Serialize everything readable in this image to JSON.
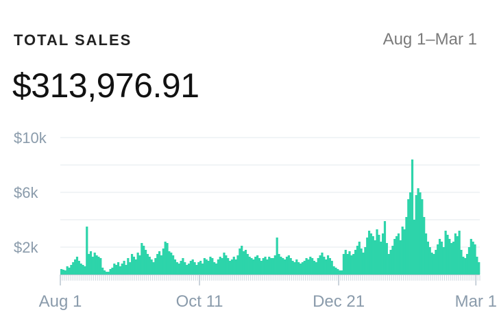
{
  "header": {
    "title": "TOTAL SALES",
    "date_range": "Aug 1–Mar 1",
    "total": "$313,976.91"
  },
  "colors": {
    "bar": "#2dd4aa",
    "grid": "#e3e8ee",
    "axis": "#b9c4cf",
    "tick_text": "#8a9bab"
  },
  "chart_data": {
    "type": "bar",
    "title": "",
    "xlabel": "",
    "ylabel": "",
    "ylim": [
      0,
      10000
    ],
    "grid": true,
    "y_ticks": [
      {
        "value": 10000,
        "label": "$10k"
      },
      {
        "value": 6000,
        "label": "$6k"
      },
      {
        "value": 2000,
        "label": "$2k"
      }
    ],
    "y_gridlines": [
      10000,
      8000,
      6000,
      4000,
      2000
    ],
    "x_ticks": [
      {
        "index": 0,
        "label": "Aug 1"
      },
      {
        "index": 71,
        "label": "Oct 11"
      },
      {
        "index": 142,
        "label": "Dec 21"
      },
      {
        "index": 212,
        "label": "Mar 1"
      }
    ],
    "start_date": "Aug 1",
    "end_date": "Mar 1",
    "values": [
      400,
      350,
      300,
      600,
      500,
      700,
      900,
      1100,
      1300,
      1000,
      800,
      700,
      600,
      3500,
      1500,
      1700,
      1300,
      1600,
      1400,
      1300,
      1200,
      500,
      300,
      200,
      200,
      400,
      500,
      800,
      700,
      900,
      600,
      800,
      1000,
      700,
      1200,
      900,
      1500,
      1300,
      1100,
      1600,
      1400,
      2300,
      2100,
      1800,
      1500,
      1300,
      1100,
      900,
      1200,
      1500,
      1700,
      1400,
      1900,
      2400,
      2300,
      1700,
      1600,
      1400,
      1100,
      900,
      800,
      1000,
      1200,
      900,
      700,
      800,
      1000,
      1100,
      900,
      700,
      900,
      1000,
      800,
      1200,
      1100,
      1000,
      1300,
      1200,
      900,
      800,
      1100,
      1300,
      1200,
      1600,
      1400,
      1200,
      1000,
      1100,
      1300,
      1100,
      1400,
      1900,
      2100,
      1700,
      1800,
      1500,
      1300,
      1200,
      1100,
      1300,
      1400,
      1200,
      1000,
      1200,
      1300,
      1100,
      1300,
      1200,
      1200,
      1400,
      2700,
      1500,
      1300,
      1200,
      1100,
      1300,
      1400,
      1200,
      1000,
      900,
      1100,
      900,
      800,
      900,
      1000,
      1200,
      1100,
      1300,
      1200,
      1000,
      900,
      1200,
      1400,
      1600,
      1300,
      1100,
      1400,
      1200,
      1000,
      600,
      500,
      400,
      300,
      300,
      1500,
      1800,
      1500,
      1700,
      1400,
      1500,
      1800,
      2100,
      2400,
      1900,
      1600,
      2000,
      2700,
      3200,
      3000,
      2800,
      2500,
      3300,
      2900,
      2400,
      3000,
      3900,
      2300,
      1500,
      1800,
      2100,
      2600,
      2800,
      3000,
      2500,
      3500,
      3300,
      4200,
      5500,
      6000,
      8400,
      4000,
      5800,
      6300,
      6000,
      5500,
      4200,
      3000,
      2400,
      2000,
      1600,
      1500,
      1800,
      2200,
      2600,
      2400,
      2000,
      3200,
      2900,
      2600,
      2300,
      2400,
      3000,
      2800,
      3200,
      1800,
      1300,
      1200,
      1500,
      2000,
      2600,
      2400,
      2200,
      1300,
      900
    ]
  }
}
